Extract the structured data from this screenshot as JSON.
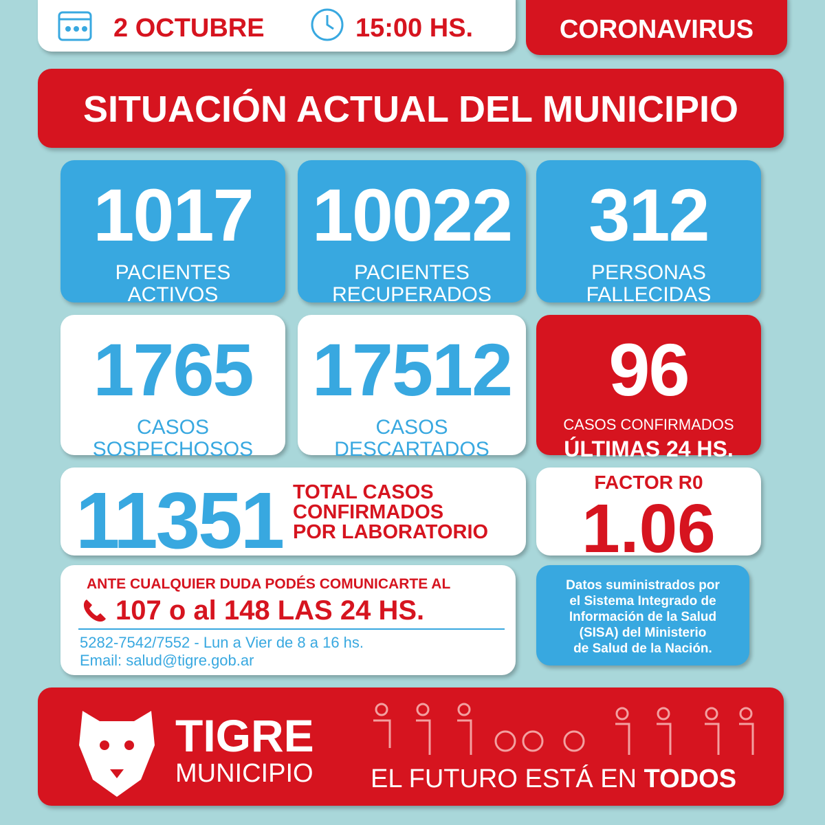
{
  "header": {
    "date": "2 OCTUBRE",
    "time": "15:00 HS.",
    "tag": "CORONAVIRUS"
  },
  "title": "SITUACIÓN ACTUAL DEL MUNICIPIO",
  "cards": [
    {
      "number": 1017,
      "label": [
        "PACIENTES",
        "ACTIVOS"
      ]
    },
    {
      "number": 10022,
      "label": [
        "PACIENTES",
        "RECUPERADOS"
      ]
    },
    {
      "number": 312,
      "label": [
        "PERSONAS",
        "FALLECIDAS"
      ]
    },
    {
      "number": 1765,
      "label": [
        "CASOS",
        "SOSPECHOSOS"
      ]
    },
    {
      "number": 17512,
      "label": [
        "CASOS",
        "DESCARTADOS"
      ]
    },
    {
      "number": 96,
      "label": [
        "CASOS CONFIRMADOS",
        "ÚLTIMAS 24 HS."
      ]
    }
  ],
  "total": {
    "number": 11351,
    "label": [
      "TOTAL CASOS",
      "CONFIRMADOS",
      "POR LABORATORIO"
    ]
  },
  "factor": {
    "label": "FACTOR R0",
    "value": 1.06
  },
  "contact": {
    "intro": "ANTE CUALQUIER DUDA PODÉS COMUNICARTE AL",
    "phones": "107 o al 148 LAS 24 HS.",
    "hours": "5282-7542/7552 - Lun a Vier de 8 a 16 hs.",
    "email": "Email: salud@tigre.gob.ar"
  },
  "source": [
    "Datos suministrados por",
    "el Sistema Integrado de",
    "Información de la Salud",
    "(SISA) del Ministerio",
    "de Salud de la Nación."
  ],
  "footer": {
    "brand": "TIGRE",
    "sub": "MUNICIPIO",
    "slogan": "EL FUTURO ESTÁ EN",
    "slogan_bold": "TODOS"
  }
}
